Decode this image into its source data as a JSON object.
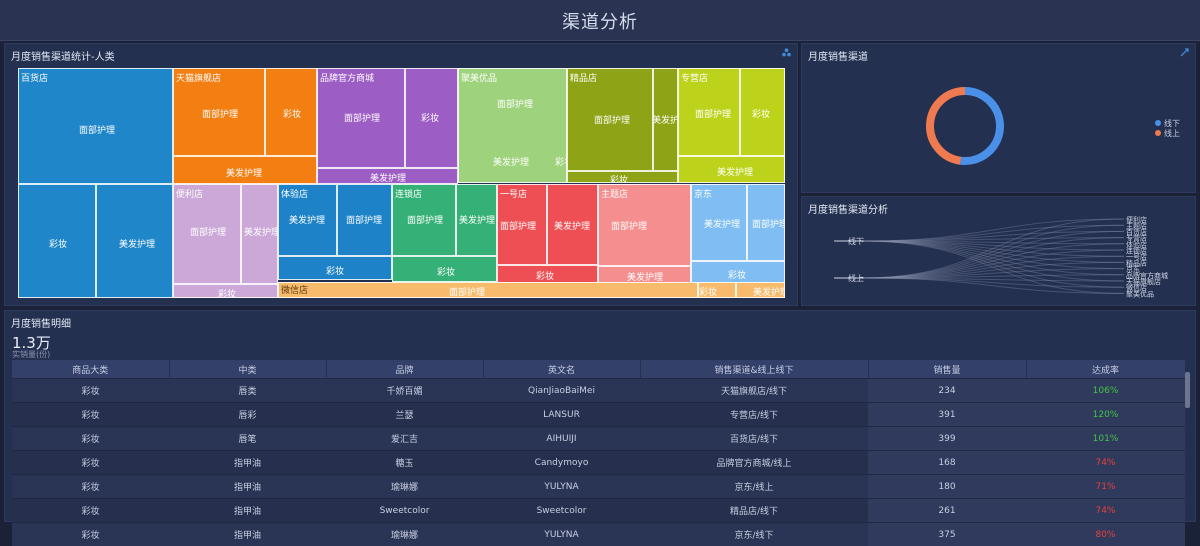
{
  "header": {
    "title": "渠道分析"
  },
  "treemap_panel": {
    "title": "月度销售渠道统计-人类",
    "icon": "cluster-icon",
    "groups": [
      "百货店",
      "天猫旗舰店",
      "品牌官方商城",
      "聚美优品",
      "精品店",
      "专营店",
      "便利店",
      "体验店",
      "连锁店",
      "一号店",
      "主题店",
      "京东",
      "微信店"
    ],
    "cells": [
      {
        "label": "",
        "color": "#1f86c9"
      },
      {
        "label": "面部护理",
        "color": "#1f86c9"
      },
      {
        "label": "彩妆",
        "color": "#1f86c9"
      },
      {
        "label": "美发护理",
        "color": "#1f86c9"
      },
      {
        "label": "面部护理",
        "color": "#f37e12"
      },
      {
        "label": "彩妆",
        "color": "#f37e12"
      },
      {
        "label": "美发护理",
        "color": "#f37e12"
      },
      {
        "label": "面部护理",
        "color": "#9c5dc4"
      },
      {
        "label": "彩妆",
        "color": "#9c5dc4"
      },
      {
        "label": "美发护理",
        "color": "#9c5dc4"
      },
      {
        "label": "面部护理",
        "color": "#9fd27d"
      },
      {
        "label": "美发护理",
        "color": "#9fd27d"
      },
      {
        "label": "彩妆",
        "color": "#9fd27d"
      },
      {
        "label": "面部护理",
        "color": "#8ea316"
      },
      {
        "label": "美发护理",
        "color": "#8ea316"
      },
      {
        "label": "彩妆",
        "color": "#8ea316"
      },
      {
        "label": "面部护理",
        "color": "#bdd31b"
      },
      {
        "label": "彩妆",
        "color": "#bdd31b"
      },
      {
        "label": "美发护理",
        "color": "#bdd31b"
      },
      {
        "label": "面部护理",
        "color": "#cba8d8"
      },
      {
        "label": "美发护理",
        "color": "#cba8d8"
      },
      {
        "label": "彩妆",
        "color": "#cba8d8"
      },
      {
        "label": "美发护理",
        "color": "#1d82c8"
      },
      {
        "label": "面部护理",
        "color": "#1d82c8"
      },
      {
        "label": "彩妆",
        "color": "#1d82c8"
      },
      {
        "label": "面部护理",
        "color": "#35b077"
      },
      {
        "label": "美发护理",
        "color": "#35b077"
      },
      {
        "label": "彩妆",
        "color": "#35b077"
      },
      {
        "label": "面部护理",
        "color": "#ee4f55"
      },
      {
        "label": "美发护理",
        "color": "#ee4f55"
      },
      {
        "label": "彩妆",
        "color": "#ee4f55"
      },
      {
        "label": "面部护理",
        "color": "#f58e8e"
      },
      {
        "label": "彩妆",
        "color": "#f58e8e"
      },
      {
        "label": "美发护理",
        "color": "#f58e8e"
      },
      {
        "label": "美发护理",
        "color": "#7fbdf2"
      },
      {
        "label": "面部护理",
        "color": "#7fbdf2"
      },
      {
        "label": "彩妆",
        "color": "#7fbdf2"
      },
      {
        "label": "面部护理",
        "color": "#f8bb6c"
      },
      {
        "label": "彩妆",
        "color": "#f8bb6c"
      },
      {
        "label": "美发护理",
        "color": "#f8bb6c"
      }
    ]
  },
  "donut_panel": {
    "title": "月度销售渠道",
    "icon": "link-icon",
    "legend": [
      {
        "label": "线下",
        "color": "#4a90e8"
      },
      {
        "label": "线上",
        "color": "#ef7a4f"
      }
    ],
    "shares": [
      0.52,
      0.48
    ]
  },
  "sankey_panel": {
    "title": "月度销售渠道分析",
    "left_labels": [
      "线下",
      "线上"
    ],
    "right_labels": [
      "便利店",
      "主题店",
      "百货店",
      "专营店",
      "体验店",
      "连锁店",
      "一号店",
      "精品店",
      "京东",
      "品牌官方商城",
      "天猫旗舰店",
      "微信店",
      "聚美优品"
    ]
  },
  "detail_panel": {
    "title": "月度销售明细",
    "big_value": "1.3万",
    "sub_value": "实销量(份)",
    "columns": [
      "商品大类",
      "中类",
      "品牌",
      "英文名",
      "销售渠道&线上线下",
      "销售量",
      "达成率"
    ],
    "rows": [
      [
        "彩妆",
        "唇类",
        "千娇百媚",
        "QianJiaoBaiMei",
        "天猫旗舰店/线下",
        "234",
        "106%"
      ],
      [
        "彩妆",
        "唇彩",
        "兰瑟",
        "LANSUR",
        "专营店/线下",
        "391",
        "120%"
      ],
      [
        "彩妆",
        "唇笔",
        "爱汇吉",
        "AIHUIJI",
        "百货店/线下",
        "399",
        "101%"
      ],
      [
        "彩妆",
        "指甲油",
        "糖玉",
        "Candymoyo",
        "品牌官方商城/线上",
        "168",
        "74%"
      ],
      [
        "彩妆",
        "指甲油",
        "瑜琳娜",
        "YULYNA",
        "京东/线上",
        "180",
        "71%"
      ],
      [
        "彩妆",
        "指甲油",
        "Sweetcolor",
        "Sweetcolor",
        "精品店/线下",
        "261",
        "74%"
      ],
      [
        "彩妆",
        "指甲油",
        "瑜琳娜",
        "YULYNA",
        "京东/线下",
        "375",
        "80%"
      ]
    ],
    "rate_colors": {
      "good": "#43c743",
      "bad": "#e8403e"
    }
  }
}
